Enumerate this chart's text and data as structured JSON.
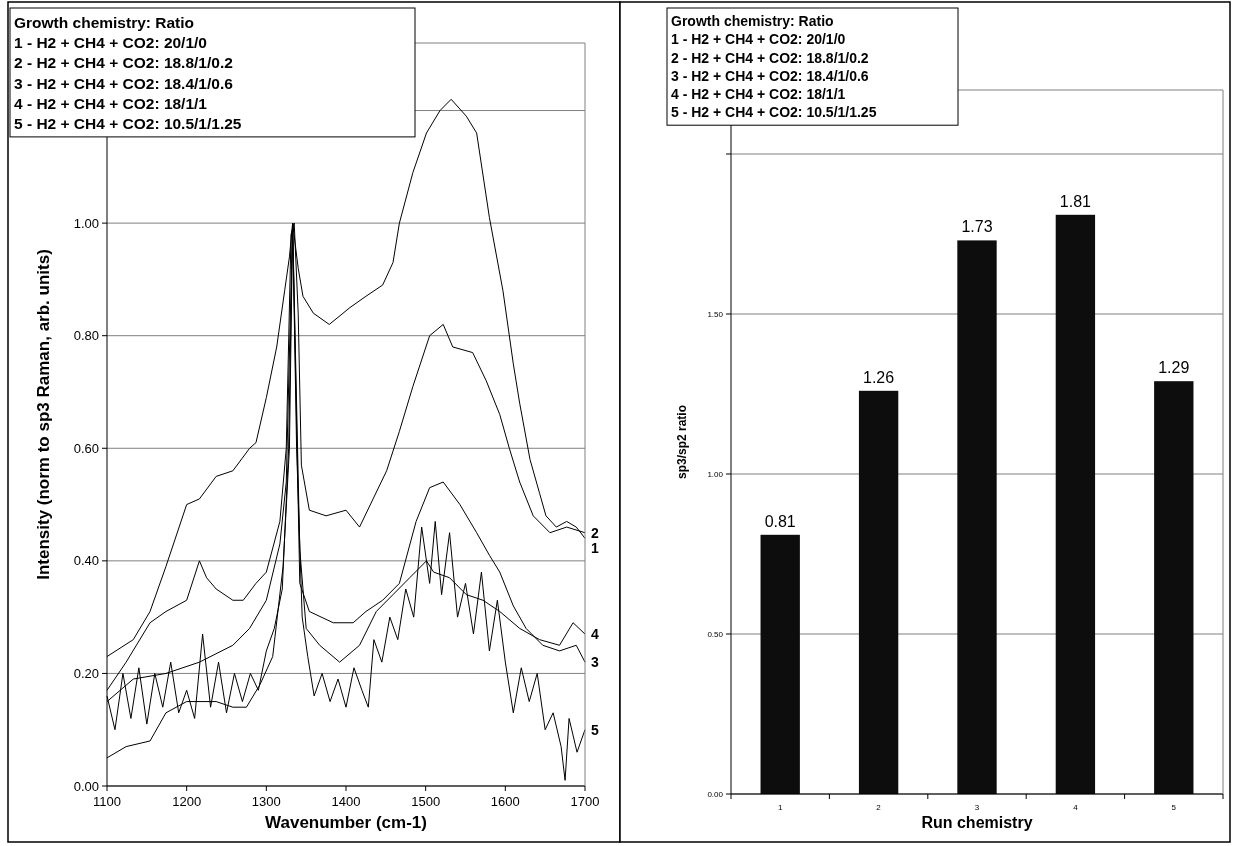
{
  "chart_data": [
    {
      "type": "line",
      "xlabel": "Wavenumber (cm-1)",
      "ylabel": "Intensity (norm to sp3 Raman, arb. units)",
      "annotations": [
        "Growth chemistry: Ratio",
        "1 - H2 + CH4 + CO2: 20/1/0",
        "2 - H2 + CH4 + CO2: 18.8/1/0.2",
        "3 - H2 + CH4 + CO2: 18.4/1/0.6",
        "4 - H2 + CH4 + CO2: 18/1/1",
        "5 - H2 + CH4 + CO2: 10.5/1/1.25"
      ],
      "xlim": [
        1100,
        1700
      ],
      "xticks": [
        1100,
        1200,
        1300,
        1400,
        1500,
        1600,
        1700
      ],
      "ylim": [
        0,
        1.32
      ],
      "yticks": [
        {
          "value": 0,
          "label": "0.00"
        },
        {
          "value": 0.2,
          "label": "0.20"
        },
        {
          "value": 0.4,
          "label": "0.40"
        },
        {
          "value": 0.6,
          "label": "0.60"
        },
        {
          "value": 0.8,
          "label": "0.80"
        },
        {
          "value": 1,
          "label": "1.00"
        },
        {
          "value": 1.2,
          "label": null
        }
      ],
      "grid": "y",
      "line_style": "solid",
      "series": [
        {
          "name": "1",
          "color": "#000000",
          "x": [
            1100,
            1133,
            1154,
            1174,
            1200,
            1216,
            1237,
            1258,
            1279,
            1287,
            1300,
            1313,
            1323,
            1329,
            1333,
            1340,
            1346,
            1359,
            1379,
            1405,
            1425,
            1446,
            1459,
            1467,
            1484,
            1501,
            1518,
            1532,
            1551,
            1564,
            1580,
            1597,
            1610,
            1618,
            1631,
            1643,
            1651,
            1664,
            1677,
            1689,
            1700
          ],
          "values": [
            0.23,
            0.26,
            0.31,
            0.39,
            0.5,
            0.51,
            0.55,
            0.56,
            0.6,
            0.61,
            0.69,
            0.78,
            0.88,
            0.94,
            1.0,
            0.92,
            0.87,
            0.84,
            0.82,
            0.85,
            0.87,
            0.89,
            0.93,
            1.0,
            1.09,
            1.16,
            1.2,
            1.22,
            1.19,
            1.16,
            1.01,
            0.88,
            0.75,
            0.68,
            0.58,
            0.52,
            0.48,
            0.46,
            0.47,
            0.46,
            0.44
          ]
        },
        {
          "name": "2",
          "color": "#000000",
          "x": [
            1100,
            1124,
            1154,
            1174,
            1200,
            1216,
            1225,
            1237,
            1258,
            1271,
            1287,
            1300,
            1317,
            1325,
            1331,
            1335,
            1340,
            1344,
            1354,
            1375,
            1400,
            1417,
            1434,
            1451,
            1467,
            1484,
            1505,
            1522,
            1534,
            1559,
            1576,
            1593,
            1605,
            1618,
            1635,
            1656,
            1677,
            1700
          ],
          "values": [
            0.17,
            0.22,
            0.29,
            0.31,
            0.33,
            0.4,
            0.37,
            0.35,
            0.33,
            0.33,
            0.36,
            0.38,
            0.47,
            0.6,
            0.98,
            1.0,
            0.84,
            0.57,
            0.49,
            0.48,
            0.49,
            0.46,
            0.51,
            0.56,
            0.63,
            0.71,
            0.8,
            0.82,
            0.78,
            0.77,
            0.72,
            0.66,
            0.6,
            0.54,
            0.48,
            0.45,
            0.46,
            0.45
          ]
        },
        {
          "name": "3",
          "color": "#000000",
          "x": [
            1100,
            1133,
            1174,
            1216,
            1258,
            1279,
            1300,
            1317,
            1325,
            1333,
            1342,
            1354,
            1384,
            1409,
            1425,
            1446,
            1467,
            1488,
            1505,
            1522,
            1543,
            1564,
            1580,
            1593,
            1610,
            1626,
            1647,
            1668,
            1689,
            1700
          ],
          "values": [
            0.15,
            0.19,
            0.2,
            0.22,
            0.25,
            0.28,
            0.33,
            0.43,
            0.54,
            1.0,
            0.36,
            0.31,
            0.29,
            0.29,
            0.31,
            0.33,
            0.36,
            0.47,
            0.53,
            0.54,
            0.5,
            0.45,
            0.41,
            0.38,
            0.32,
            0.28,
            0.25,
            0.24,
            0.25,
            0.22
          ]
        },
        {
          "name": "4",
          "color": "#000000",
          "x": [
            1100,
            1124,
            1154,
            1174,
            1200,
            1237,
            1258,
            1275,
            1292,
            1308,
            1321,
            1329,
            1333,
            1342,
            1350,
            1367,
            1392,
            1417,
            1438,
            1459,
            1480,
            1501,
            1510,
            1530,
            1551,
            1572,
            1593,
            1618,
            1643,
            1668,
            1685,
            1700
          ],
          "values": [
            0.05,
            0.07,
            0.08,
            0.13,
            0.15,
            0.15,
            0.14,
            0.14,
            0.18,
            0.23,
            0.39,
            0.6,
            1.0,
            0.42,
            0.28,
            0.25,
            0.22,
            0.25,
            0.31,
            0.34,
            0.37,
            0.4,
            0.38,
            0.37,
            0.34,
            0.33,
            0.31,
            0.28,
            0.26,
            0.25,
            0.29,
            0.27
          ]
        },
        {
          "name": "5",
          "color": "#000000",
          "x": [
            1100,
            1110,
            1120,
            1130,
            1140,
            1150,
            1160,
            1170,
            1180,
            1190,
            1200,
            1210,
            1220,
            1230,
            1240,
            1250,
            1260,
            1270,
            1280,
            1290,
            1300,
            1310,
            1320,
            1328,
            1333,
            1338,
            1345,
            1352,
            1360,
            1370,
            1380,
            1390,
            1400,
            1410,
            1420,
            1428,
            1435,
            1445,
            1455,
            1465,
            1475,
            1485,
            1495,
            1505,
            1512,
            1520,
            1530,
            1540,
            1550,
            1560,
            1570,
            1580,
            1590,
            1600,
            1610,
            1620,
            1630,
            1640,
            1650,
            1660,
            1670,
            1675,
            1680,
            1690,
            1700
          ],
          "values": [
            0.16,
            0.1,
            0.2,
            0.12,
            0.21,
            0.11,
            0.2,
            0.14,
            0.22,
            0.13,
            0.17,
            0.12,
            0.27,
            0.14,
            0.22,
            0.13,
            0.2,
            0.15,
            0.2,
            0.17,
            0.24,
            0.28,
            0.35,
            0.6,
            1.0,
            0.6,
            0.3,
            0.23,
            0.16,
            0.2,
            0.15,
            0.19,
            0.14,
            0.21,
            0.17,
            0.14,
            0.26,
            0.22,
            0.3,
            0.26,
            0.35,
            0.3,
            0.46,
            0.36,
            0.47,
            0.34,
            0.45,
            0.3,
            0.36,
            0.27,
            0.38,
            0.24,
            0.33,
            0.22,
            0.13,
            0.21,
            0.15,
            0.2,
            0.1,
            0.13,
            0.07,
            0.01,
            0.12,
            0.06,
            0.1
          ]
        }
      ]
    },
    {
      "type": "bar",
      "xlabel": "Run chemistry",
      "ylabel": "sp3/sp2 ratio",
      "annotations": [
        "Growth chemistry: Ratio",
        "1 - H2 + CH4 + CO2: 20/1/0",
        "2 - H2 + CH4 + CO2: 18.8/1/0.2",
        "3 - H2 + CH4 + CO2: 18.4/1/0.6",
        "4 - H2 + CH4 + CO2: 18/1/1",
        "5 - H2 + CH4 + CO2: 10.5/1/1.25"
      ],
      "categories": [
        "1",
        "2",
        "3",
        "4",
        "5"
      ],
      "values": [
        0.81,
        1.26,
        1.73,
        1.81,
        1.29
      ],
      "color": "#0d0d0d",
      "data_labels": true,
      "ylim": [
        0,
        2.2
      ],
      "yticks": [
        {
          "value": 0,
          "label": "0.00"
        },
        {
          "value": 0.5,
          "label": "0.50"
        },
        {
          "value": 1,
          "label": "1.00"
        },
        {
          "value": 1.5,
          "label": "1.50"
        },
        {
          "value": 2,
          "label": null
        }
      ],
      "grid": "y"
    }
  ]
}
